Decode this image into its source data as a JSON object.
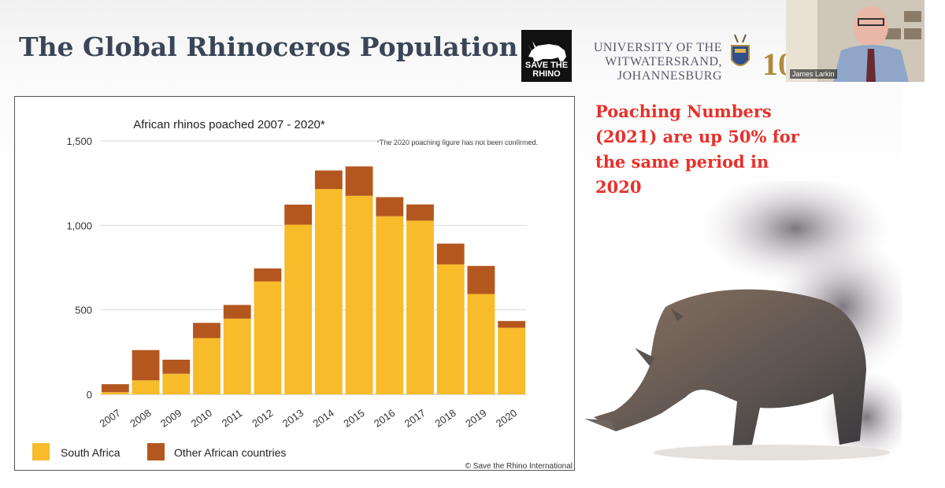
{
  "slide": {
    "title": "The Global Rhinoceros Population",
    "logo_text": "SAVE THE RHINO",
    "university_line1": "UNIVERSITY OF THE",
    "university_line2": "WITWATERSRAND,",
    "university_line3": "JOHANNESBURG",
    "anniversary_digits": "10",
    "callout": "Poaching Numbers (2021) are up 50% for the same period in 2020"
  },
  "webcam": {
    "name": "James Larkin"
  },
  "colors": {
    "south_africa": "#f8bb2a",
    "other_african": "#b4571f",
    "callout": "#e8302a",
    "title": "#3a4657"
  },
  "chart_data": {
    "type": "bar",
    "stacked": true,
    "title": "African rhinos poached 2007 - 2020*",
    "footnote": "*The 2020 poaching figure  has not been confirmed.",
    "credit": "© Save the Rhino International",
    "categories": [
      "2007",
      "2008",
      "2009",
      "2010",
      "2011",
      "2012",
      "2013",
      "2014",
      "2015",
      "2016",
      "2017",
      "2018",
      "2019",
      "2020"
    ],
    "series": [
      {
        "name": "South Africa",
        "values": [
          13,
          83,
          122,
          333,
          448,
          668,
          1004,
          1215,
          1175,
          1054,
          1028,
          769,
          594,
          394
        ]
      },
      {
        "name": "Other African countries",
        "values": [
          47,
          179,
          83,
          90,
          81,
          77,
          119,
          110,
          174,
          113,
          96,
          123,
          166,
          40
        ]
      }
    ],
    "yticks": [
      "0",
      "500",
      "1,000",
      "1,500"
    ],
    "ytick_values": [
      0,
      500,
      1000,
      1500
    ],
    "ylim": [
      0,
      1500
    ],
    "grid": true,
    "legend_position": "bottom-left"
  }
}
